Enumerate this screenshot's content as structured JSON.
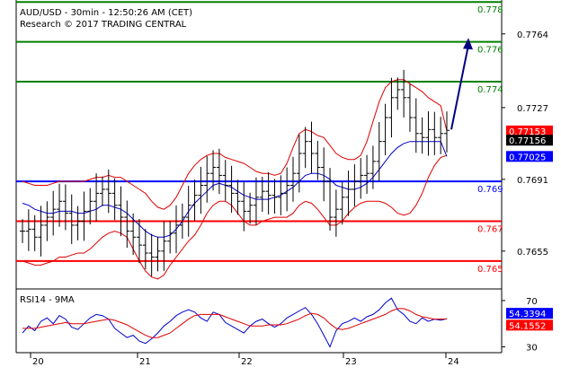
{
  "header": {
    "line1": "AUD/USD - 30min - 12:50:26 AM (CET)",
    "line2": "Research © 2017 TRADING CENTRAL"
  },
  "colors": {
    "resistance": "#008000",
    "support": "#ff0000",
    "pivot": "#0000ff",
    "bollinger": "#e00000",
    "ma": "#0000cc",
    "candle": "#000000",
    "arrow": "#000080",
    "price_tag_bg": "#000000",
    "ma_tag_bg": "#0000ff",
    "bb_tag_bg": "#ff0000"
  },
  "chart_data": [
    {
      "type": "line",
      "title": "AUD/USD - 30min",
      "x_tick_labels": [
        "20",
        "21",
        "22",
        "23",
        "24"
      ],
      "y_tick_labels": [
        "0.7764",
        "0.7727",
        "0.7691",
        "0.7655"
      ],
      "ylim": [
        0.7636,
        0.7781
      ],
      "levels": [
        {
          "label": "0.778",
          "value": 0.778,
          "kind": "resistance"
        },
        {
          "label": "0.776",
          "value": 0.776,
          "kind": "resistance"
        },
        {
          "label": "0.774",
          "value": 0.774,
          "kind": "resistance"
        },
        {
          "label": "0.769",
          "value": 0.769,
          "kind": "pivot"
        },
        {
          "label": "0.767",
          "value": 0.767,
          "kind": "support"
        },
        {
          "label": "0.765",
          "value": 0.765,
          "kind": "support"
        }
      ],
      "price_tags": [
        {
          "label": "0.77153",
          "value": 0.77153,
          "kind": "bollinger"
        },
        {
          "label": "0.77156",
          "value": 0.77156,
          "kind": "price"
        },
        {
          "label": "0.77025",
          "value": 0.77025,
          "kind": "ma"
        }
      ],
      "series": [
        {
          "kind": "close",
          "values": [
            0.7665,
            0.7666,
            0.7662,
            0.7668,
            0.7672,
            0.7676,
            0.768,
            0.7674,
            0.7668,
            0.767,
            0.7675,
            0.768,
            0.7684,
            0.7686,
            0.7684,
            0.7678,
            0.7672,
            0.7665,
            0.7662,
            0.7658,
            0.7654,
            0.7652,
            0.7655,
            0.766,
            0.7664,
            0.7668,
            0.7672,
            0.7678,
            0.7683,
            0.7688,
            0.7694,
            0.7697,
            0.7693,
            0.7688,
            0.7684,
            0.768,
            0.7675,
            0.7678,
            0.7682,
            0.7685,
            0.7683,
            0.7682,
            0.7684,
            0.7688,
            0.7694,
            0.7704,
            0.771,
            0.7704,
            0.7697,
            0.769,
            0.7672,
            0.7676,
            0.7682,
            0.7686,
            0.769,
            0.7693,
            0.7694,
            0.77,
            0.771,
            0.7722,
            0.7732,
            0.7736,
            0.7732,
            0.7722,
            0.7714,
            0.7712,
            0.7716,
            0.7712,
            0.7714,
            0.77156
          ]
        },
        {
          "kind": "bollinger_upper",
          "values": [
            0.769,
            0.7689,
            0.7688,
            0.7688,
            0.7688,
            0.7689,
            0.769,
            0.769,
            0.769,
            0.769,
            0.769,
            0.7691,
            0.7692,
            0.7692,
            0.7693,
            0.7692,
            0.7692,
            0.769,
            0.7688,
            0.7686,
            0.7684,
            0.768,
            0.7677,
            0.7676,
            0.7678,
            0.7682,
            0.7688,
            0.7694,
            0.7698,
            0.7701,
            0.7703,
            0.7704,
            0.7704,
            0.7702,
            0.7701,
            0.77,
            0.7699,
            0.7697,
            0.7695,
            0.7694,
            0.7694,
            0.7693,
            0.7694,
            0.7699,
            0.7707,
            0.7714,
            0.7716,
            0.7715,
            0.7713,
            0.7712,
            0.7708,
            0.7704,
            0.7702,
            0.7701,
            0.7701,
            0.7703,
            0.771,
            0.772,
            0.773,
            0.7737,
            0.774,
            0.7741,
            0.7741,
            0.7739,
            0.7737,
            0.7735,
            0.7732,
            0.773,
            0.7728,
            0.77153
          ]
        },
        {
          "kind": "bollinger_lower",
          "values": [
            0.765,
            0.7649,
            0.7648,
            0.7648,
            0.7649,
            0.765,
            0.7652,
            0.7652,
            0.7653,
            0.7654,
            0.7654,
            0.7656,
            0.7659,
            0.7662,
            0.7664,
            0.7665,
            0.7664,
            0.7662,
            0.7656,
            0.765,
            0.7645,
            0.7642,
            0.7641,
            0.7643,
            0.7648,
            0.7652,
            0.7656,
            0.766,
            0.7663,
            0.7668,
            0.7674,
            0.7678,
            0.768,
            0.768,
            0.7678,
            0.7674,
            0.767,
            0.7668,
            0.7668,
            0.767,
            0.7671,
            0.7672,
            0.7672,
            0.7672,
            0.7674,
            0.7678,
            0.768,
            0.7679,
            0.7676,
            0.7672,
            0.7668,
            0.7668,
            0.767,
            0.7674,
            0.7677,
            0.7679,
            0.768,
            0.768,
            0.768,
            0.7679,
            0.7677,
            0.7674,
            0.7673,
            0.7674,
            0.7678,
            0.7684,
            0.7692,
            0.7698,
            0.7702,
            0.7703
          ]
        },
        {
          "kind": "moving_average",
          "values": [
            0.7679,
            0.7678,
            0.7676,
            0.7675,
            0.7674,
            0.7674,
            0.7675,
            0.7675,
            0.7675,
            0.7674,
            0.7674,
            0.7675,
            0.7676,
            0.7678,
            0.7678,
            0.7677,
            0.7676,
            0.7674,
            0.7671,
            0.7668,
            0.7665,
            0.7663,
            0.7662,
            0.7662,
            0.7663,
            0.7666,
            0.767,
            0.7675,
            0.7679,
            0.7682,
            0.7685,
            0.7688,
            0.7689,
            0.7688,
            0.7687,
            0.7685,
            0.7683,
            0.7682,
            0.7681,
            0.7681,
            0.7681,
            0.7682,
            0.7683,
            0.7685,
            0.7687,
            0.769,
            0.7693,
            0.7694,
            0.7694,
            0.7693,
            0.7691,
            0.7688,
            0.7687,
            0.7686,
            0.7686,
            0.7687,
            0.7689,
            0.7692,
            0.7696,
            0.77,
            0.7704,
            0.7707,
            0.7709,
            0.771,
            0.771,
            0.771,
            0.771,
            0.771,
            0.771,
            0.77025
          ]
        }
      ],
      "projection": {
        "from": 0.7716,
        "to": 0.7762
      }
    },
    {
      "type": "line",
      "title": "RSI14 - 9MA",
      "y_tick_labels": [
        "70",
        "30"
      ],
      "ylim": [
        25,
        80
      ],
      "value_tags": [
        {
          "label": "54.3394",
          "value": 54.3394,
          "kind": "ma"
        },
        {
          "label": "54.1552",
          "value": 54.1552,
          "kind": "bollinger"
        }
      ],
      "series": [
        {
          "kind": "rsi",
          "values": [
            42,
            48,
            44,
            52,
            55,
            50,
            57,
            54,
            47,
            45,
            50,
            55,
            58,
            57,
            54,
            46,
            42,
            38,
            40,
            35,
            33,
            37,
            42,
            48,
            52,
            57,
            60,
            62,
            60,
            55,
            52,
            60,
            58,
            51,
            48,
            45,
            42,
            48,
            52,
            54,
            50,
            47,
            50,
            55,
            58,
            61,
            64,
            58,
            50,
            40,
            30,
            44,
            50,
            52,
            55,
            52,
            56,
            58,
            62,
            68,
            72,
            62,
            58,
            52,
            50,
            55,
            52,
            54,
            53,
            54.3394
          ]
        },
        {
          "kind": "rsi_ma",
          "values": [
            46,
            46,
            46,
            47,
            48,
            49,
            50,
            51,
            50,
            50,
            50,
            51,
            52,
            53,
            54,
            53,
            51,
            49,
            46,
            43,
            40,
            38,
            38,
            40,
            42,
            46,
            50,
            54,
            57,
            58,
            58,
            58,
            58,
            56,
            54,
            52,
            50,
            48,
            48,
            48,
            49,
            49,
            49,
            50,
            52,
            54,
            57,
            59,
            58,
            55,
            50,
            46,
            45,
            46,
            48,
            50,
            52,
            54,
            56,
            58,
            61,
            63,
            63,
            61,
            58,
            56,
            55,
            54,
            54,
            54.1552
          ]
        }
      ]
    }
  ]
}
